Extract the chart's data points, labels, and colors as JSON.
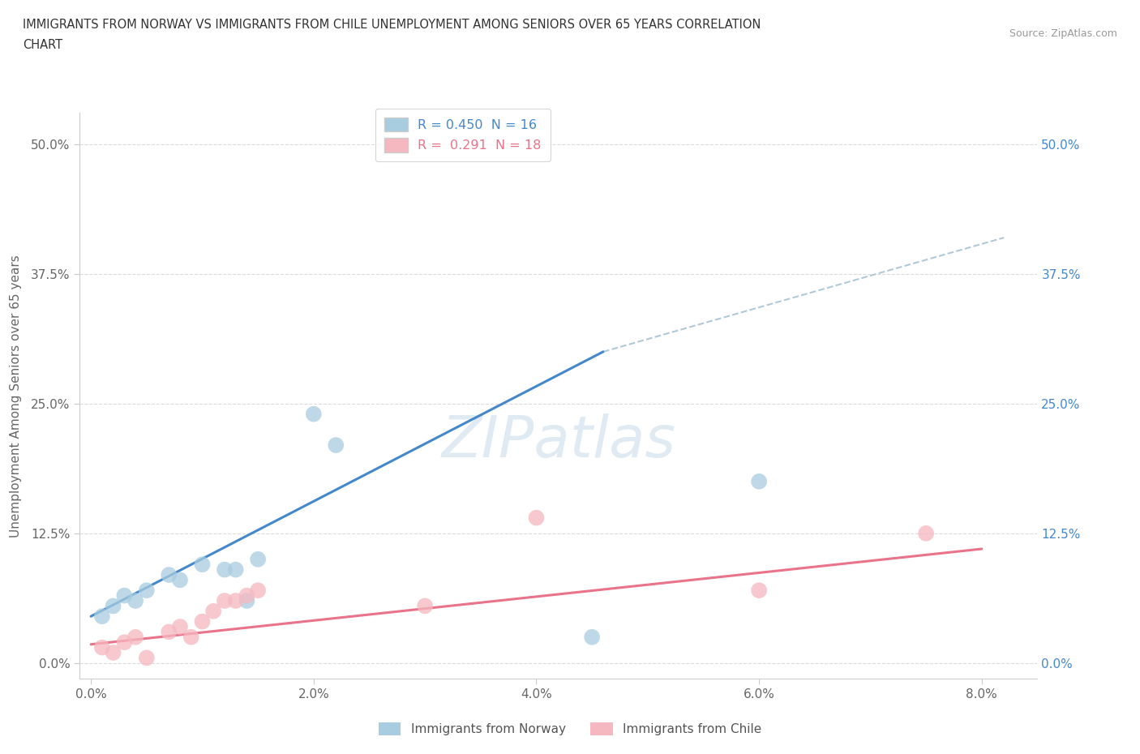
{
  "title_line1": "IMMIGRANTS FROM NORWAY VS IMMIGRANTS FROM CHILE UNEMPLOYMENT AMONG SENIORS OVER 65 YEARS CORRELATION",
  "title_line2": "CHART",
  "source": "Source: ZipAtlas.com",
  "ylabel": "Unemployment Among Seniors over 65 years",
  "xlabel_ticks": [
    "0.0%",
    "2.0%",
    "4.0%",
    "6.0%",
    "8.0%"
  ],
  "xtick_vals": [
    0.0,
    0.02,
    0.04,
    0.06,
    0.08
  ],
  "ytick_vals": [
    0.0,
    0.125,
    0.25,
    0.375,
    0.5
  ],
  "ytick_labels": [
    "0.0%",
    "12.5%",
    "25.0%",
    "37.5%",
    "50.0%"
  ],
  "xlim": [
    -0.001,
    0.085
  ],
  "ylim": [
    -0.015,
    0.53
  ],
  "norway_R": 0.45,
  "norway_N": 16,
  "chile_R": 0.291,
  "chile_N": 18,
  "norway_color": "#a8cce0",
  "chile_color": "#f5b8c0",
  "norway_line_color": "#4488cc",
  "chile_line_color": "#e8738a",
  "dashed_line_color": "#b0c8d8",
  "watermark": "ZIPatlas",
  "norway_x": [
    0.001,
    0.002,
    0.003,
    0.004,
    0.005,
    0.007,
    0.008,
    0.01,
    0.012,
    0.013,
    0.014,
    0.015,
    0.02,
    0.022,
    0.045,
    0.06
  ],
  "norway_y": [
    0.045,
    0.055,
    0.065,
    0.06,
    0.07,
    0.085,
    0.08,
    0.095,
    0.09,
    0.09,
    0.06,
    0.1,
    0.24,
    0.21,
    0.025,
    0.175
  ],
  "chile_x": [
    0.001,
    0.002,
    0.003,
    0.004,
    0.005,
    0.007,
    0.008,
    0.009,
    0.01,
    0.011,
    0.012,
    0.013,
    0.014,
    0.015,
    0.03,
    0.04,
    0.06,
    0.075
  ],
  "chile_y": [
    0.015,
    0.01,
    0.02,
    0.025,
    0.005,
    0.03,
    0.035,
    0.025,
    0.04,
    0.05,
    0.06,
    0.06,
    0.065,
    0.07,
    0.055,
    0.14,
    0.07,
    0.125
  ],
  "norway_line_x": [
    0.0,
    0.046
  ],
  "norway_line_y": [
    0.045,
    0.3
  ],
  "chile_line_x": [
    0.0,
    0.08
  ],
  "chile_line_y": [
    0.018,
    0.11
  ],
  "dash_line_x": [
    0.046,
    0.082
  ],
  "dash_line_y": [
    0.3,
    0.41
  ],
  "background_color": "#ffffff",
  "grid_color": "#cccccc",
  "norway_legend_label": "R = 0.450  N = 16",
  "chile_legend_label": "R =  0.291  N = 18",
  "norway_bottom_label": "Immigrants from Norway",
  "chile_bottom_label": "Immigrants from Chile"
}
